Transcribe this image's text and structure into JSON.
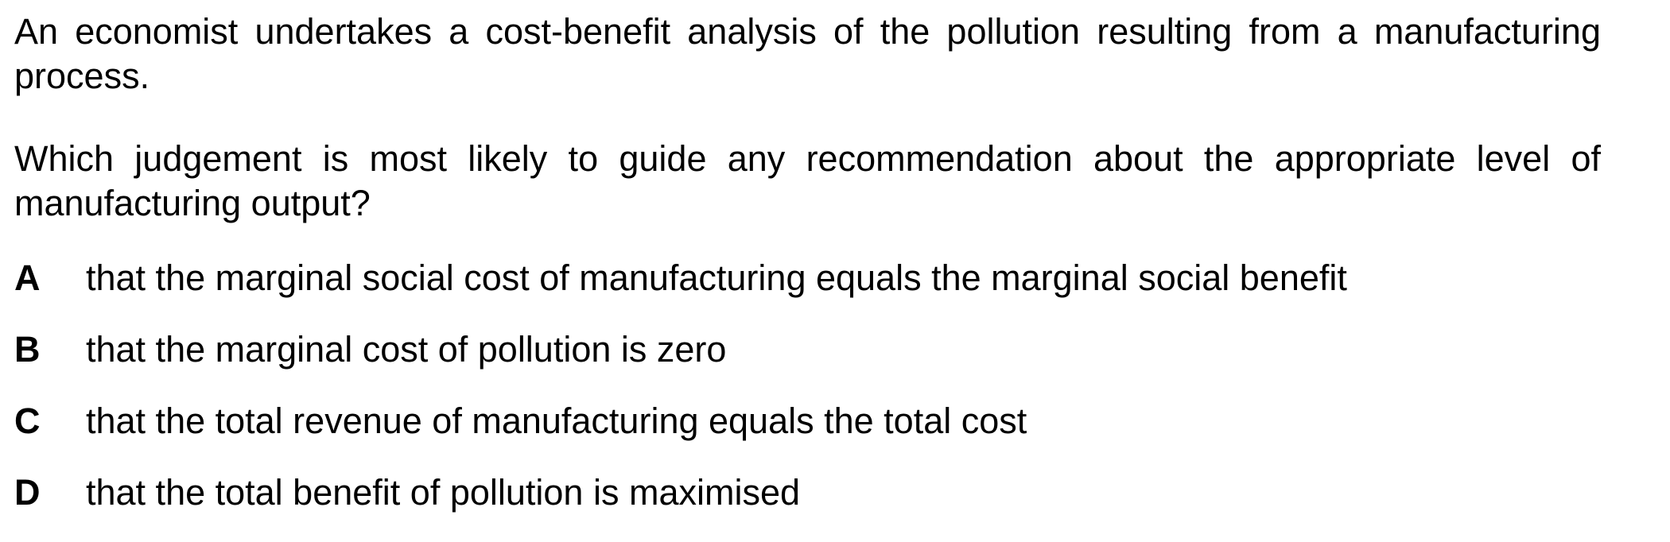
{
  "question": {
    "stem": "An economist undertakes a cost-benefit analysis of the pollution resulting from a manufacturing process.",
    "prompt": "Which judgement is most likely to guide any recommendation about the appropriate level of manufacturing output?"
  },
  "options": [
    {
      "letter": "A",
      "text": "that the marginal social cost of manufacturing equals the marginal social benefit"
    },
    {
      "letter": "B",
      "text": "that the marginal cost of pollution is zero"
    },
    {
      "letter": "C",
      "text": "that the total revenue of manufacturing equals the total cost"
    },
    {
      "letter": "D",
      "text": "that the total benefit of pollution is maximised"
    }
  ]
}
